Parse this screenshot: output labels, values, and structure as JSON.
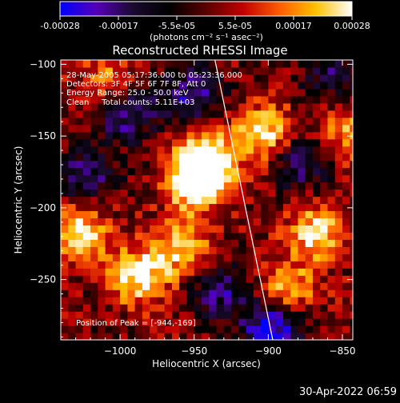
{
  "colorbar": {
    "ticks": [
      "-0.00028",
      "-0.00017",
      "-5.5e-05",
      "5.5e-05",
      "0.00017",
      "0.00028"
    ],
    "units": "(photons cm⁻² s⁻¹ asec⁻²)",
    "range": [
      -0.00028,
      0.00028
    ],
    "colors": [
      "#0000ff",
      "#5500b8",
      "#1a0a30",
      "#000000",
      "#5a0000",
      "#c00000",
      "#ff5a00",
      "#ffc000",
      "#ffffff"
    ]
  },
  "chart_data": {
    "type": "heatmap",
    "title": "Reconstructed RHESSI Image",
    "xlabel": "Heliocentric X (arcsec)",
    "ylabel": "Heliocentric Y (arcsec)",
    "xlim": [
      -1040,
      -843
    ],
    "ylim": [
      -292,
      -97
    ],
    "xticks": [
      -1000,
      -950,
      -900,
      -850
    ],
    "yticks": [
      -100,
      -150,
      -200,
      -250
    ],
    "xtick_labels": [
      "−1000",
      "−950",
      "−900",
      "−850"
    ],
    "ytick_labels": [
      "−100",
      "−150",
      "−200",
      "−250"
    ],
    "annotations": [
      "28-May-2005 05:17:36.000 to 05:23:36.000",
      "Detectors: 3F 4F 5F 6F 7F 8F, Att 0",
      "Energy Range: 25.0 - 50.0 keV",
      "Clean     Total counts: 5.11E+03"
    ],
    "peak_label": "Position of Peak = [-944,-169]",
    "peak": [
      -944,
      -169
    ],
    "limb_line": [
      [
        -936,
        -97
      ],
      [
        -897,
        -292
      ]
    ],
    "bright_regions": [
      {
        "x": -944,
        "y": -169,
        "level": 1.0
      },
      {
        "x": -952,
        "y": -185,
        "level": 0.9
      },
      {
        "x": -990,
        "y": -250,
        "level": 0.85
      },
      {
        "x": -1030,
        "y": -220,
        "level": 0.8
      },
      {
        "x": -905,
        "y": -150,
        "level": 0.8
      },
      {
        "x": -870,
        "y": -220,
        "level": 0.75
      },
      {
        "x": -890,
        "y": -260,
        "level": 0.7
      },
      {
        "x": -1010,
        "y": -115,
        "level": 0.6
      },
      {
        "x": -850,
        "y": -150,
        "level": 0.6
      },
      {
        "x": -960,
        "y": -230,
        "level": 0.7
      }
    ],
    "dark_regions": [
      {
        "x": -1000,
        "y": -135,
        "level": -0.8
      },
      {
        "x": -955,
        "y": -125,
        "level": -0.7
      },
      {
        "x": -900,
        "y": -285,
        "level": -1.0
      },
      {
        "x": -880,
        "y": -170,
        "level": -0.6
      },
      {
        "x": -1025,
        "y": -180,
        "level": -0.6
      },
      {
        "x": -935,
        "y": -260,
        "level": -0.6
      },
      {
        "x": -860,
        "y": -110,
        "level": -0.5
      }
    ]
  },
  "timestamp": "30-Apr-2022 06:59"
}
